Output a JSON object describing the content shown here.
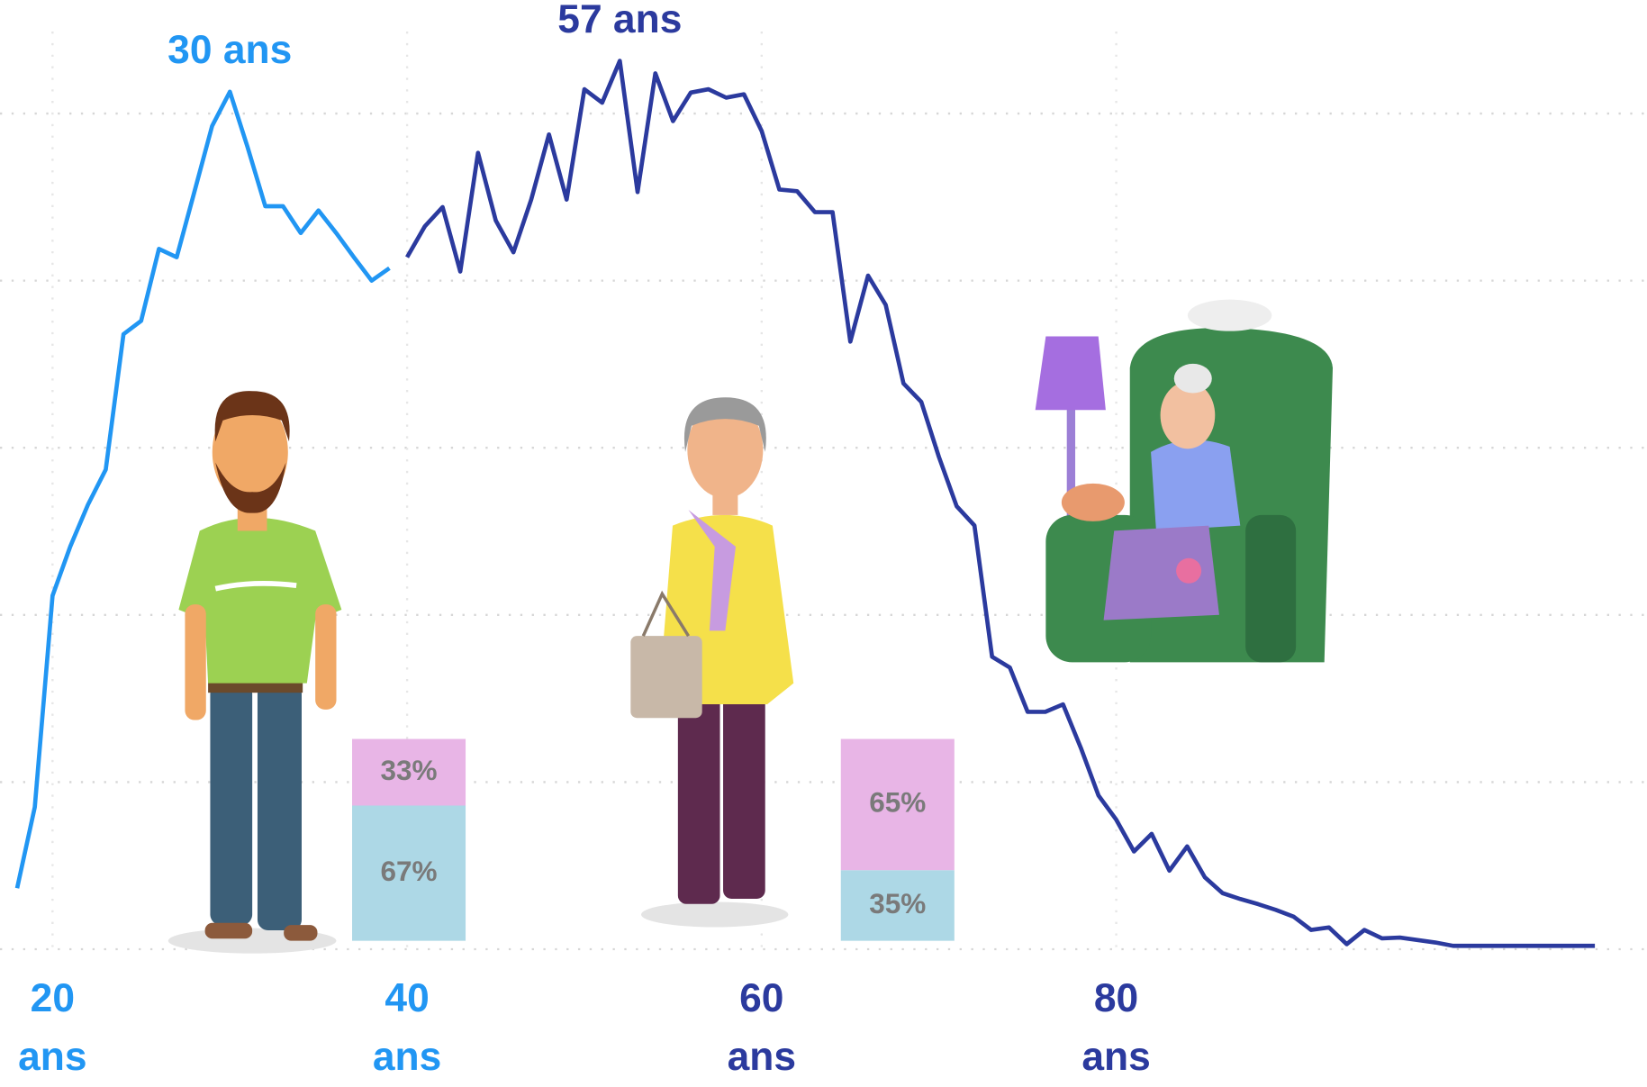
{
  "chart_data": {
    "type": "line",
    "series": [
      {
        "color": "#2196f3",
        "x": [
          18,
          19,
          20,
          21,
          22,
          23,
          24,
          25,
          26,
          27,
          28,
          29,
          30,
          31,
          32,
          33,
          34,
          35,
          36,
          37,
          38,
          39
        ],
        "values": [
          7.3,
          17,
          42.3,
          48.2,
          53.2,
          57.4,
          73.6,
          75.2,
          83.8,
          82.8,
          90.6,
          98.5,
          102.6,
          96,
          88.9,
          88.9,
          85.7,
          88.4,
          85.7,
          82.8,
          80,
          81.5
        ]
      },
      {
        "color": "#2b3a9e",
        "x": [
          40,
          41,
          42,
          43,
          44,
          45,
          46,
          47,
          48,
          49,
          50,
          51,
          52,
          53,
          54,
          55,
          56,
          57,
          58,
          59,
          60,
          61,
          62,
          63,
          64,
          65,
          66,
          67,
          68,
          69,
          70,
          71,
          72,
          73,
          74,
          75,
          76,
          77,
          78,
          79,
          80,
          81,
          82,
          83,
          84,
          85,
          86,
          87,
          88,
          89,
          90,
          91,
          92,
          93,
          94,
          95,
          96,
          97,
          98,
          99,
          100,
          101,
          102,
          103,
          104,
          105,
          106,
          107
        ],
        "values": [
          82.8,
          86.5,
          88.8,
          81.1,
          95.3,
          87.2,
          83.4,
          89.7,
          97.5,
          89.7,
          102.9,
          101.3,
          106.3,
          90.6,
          104.8,
          99.1,
          102.5,
          102.9,
          101.9,
          102.3,
          97.9,
          90.9,
          90.7,
          88.2,
          88.2,
          72.7,
          80.6,
          77.1,
          67.7,
          65.5,
          58.9,
          53,
          50.7,
          35,
          33.7,
          28.4,
          28.4,
          29.3,
          24.1,
          18.4,
          15.5,
          11.7,
          13.8,
          9.4,
          12.3,
          8.6,
          6.7,
          6,
          5.4,
          4.7,
          3.9,
          2.3,
          2.6,
          0.6,
          2.3,
          1.3,
          1.4,
          1.1,
          0.8,
          0.4,
          0.4,
          0.4,
          0.4,
          0.4,
          0.4,
          0.4,
          0.4,
          0.4
        ]
      }
    ],
    "annotations": [
      "30 ans",
      "57 ans"
    ],
    "xlim": [
      16,
      108
    ],
    "xticks": [
      {
        "value": 20,
        "label": "20 ans"
      },
      {
        "value": 40,
        "label": "40 ans"
      },
      {
        "value": 60,
        "label": "60 ans"
      },
      {
        "value": 80,
        "label": "80 ans"
      }
    ],
    "ylim": [
      0,
      110
    ],
    "yticks": [
      0,
      20,
      40,
      60,
      80,
      100
    ],
    "grid": true,
    "stacked_bars": {
      "colors": [
        "#add8e6",
        "#e8b5e6"
      ],
      "groups": [
        {
          "values": [
            67,
            33
          ],
          "value_labels": [
            "67%",
            "33%"
          ]
        },
        {
          "values": [
            35,
            65
          ],
          "value_labels": [
            "35%",
            "65%"
          ]
        }
      ]
    }
  }
}
